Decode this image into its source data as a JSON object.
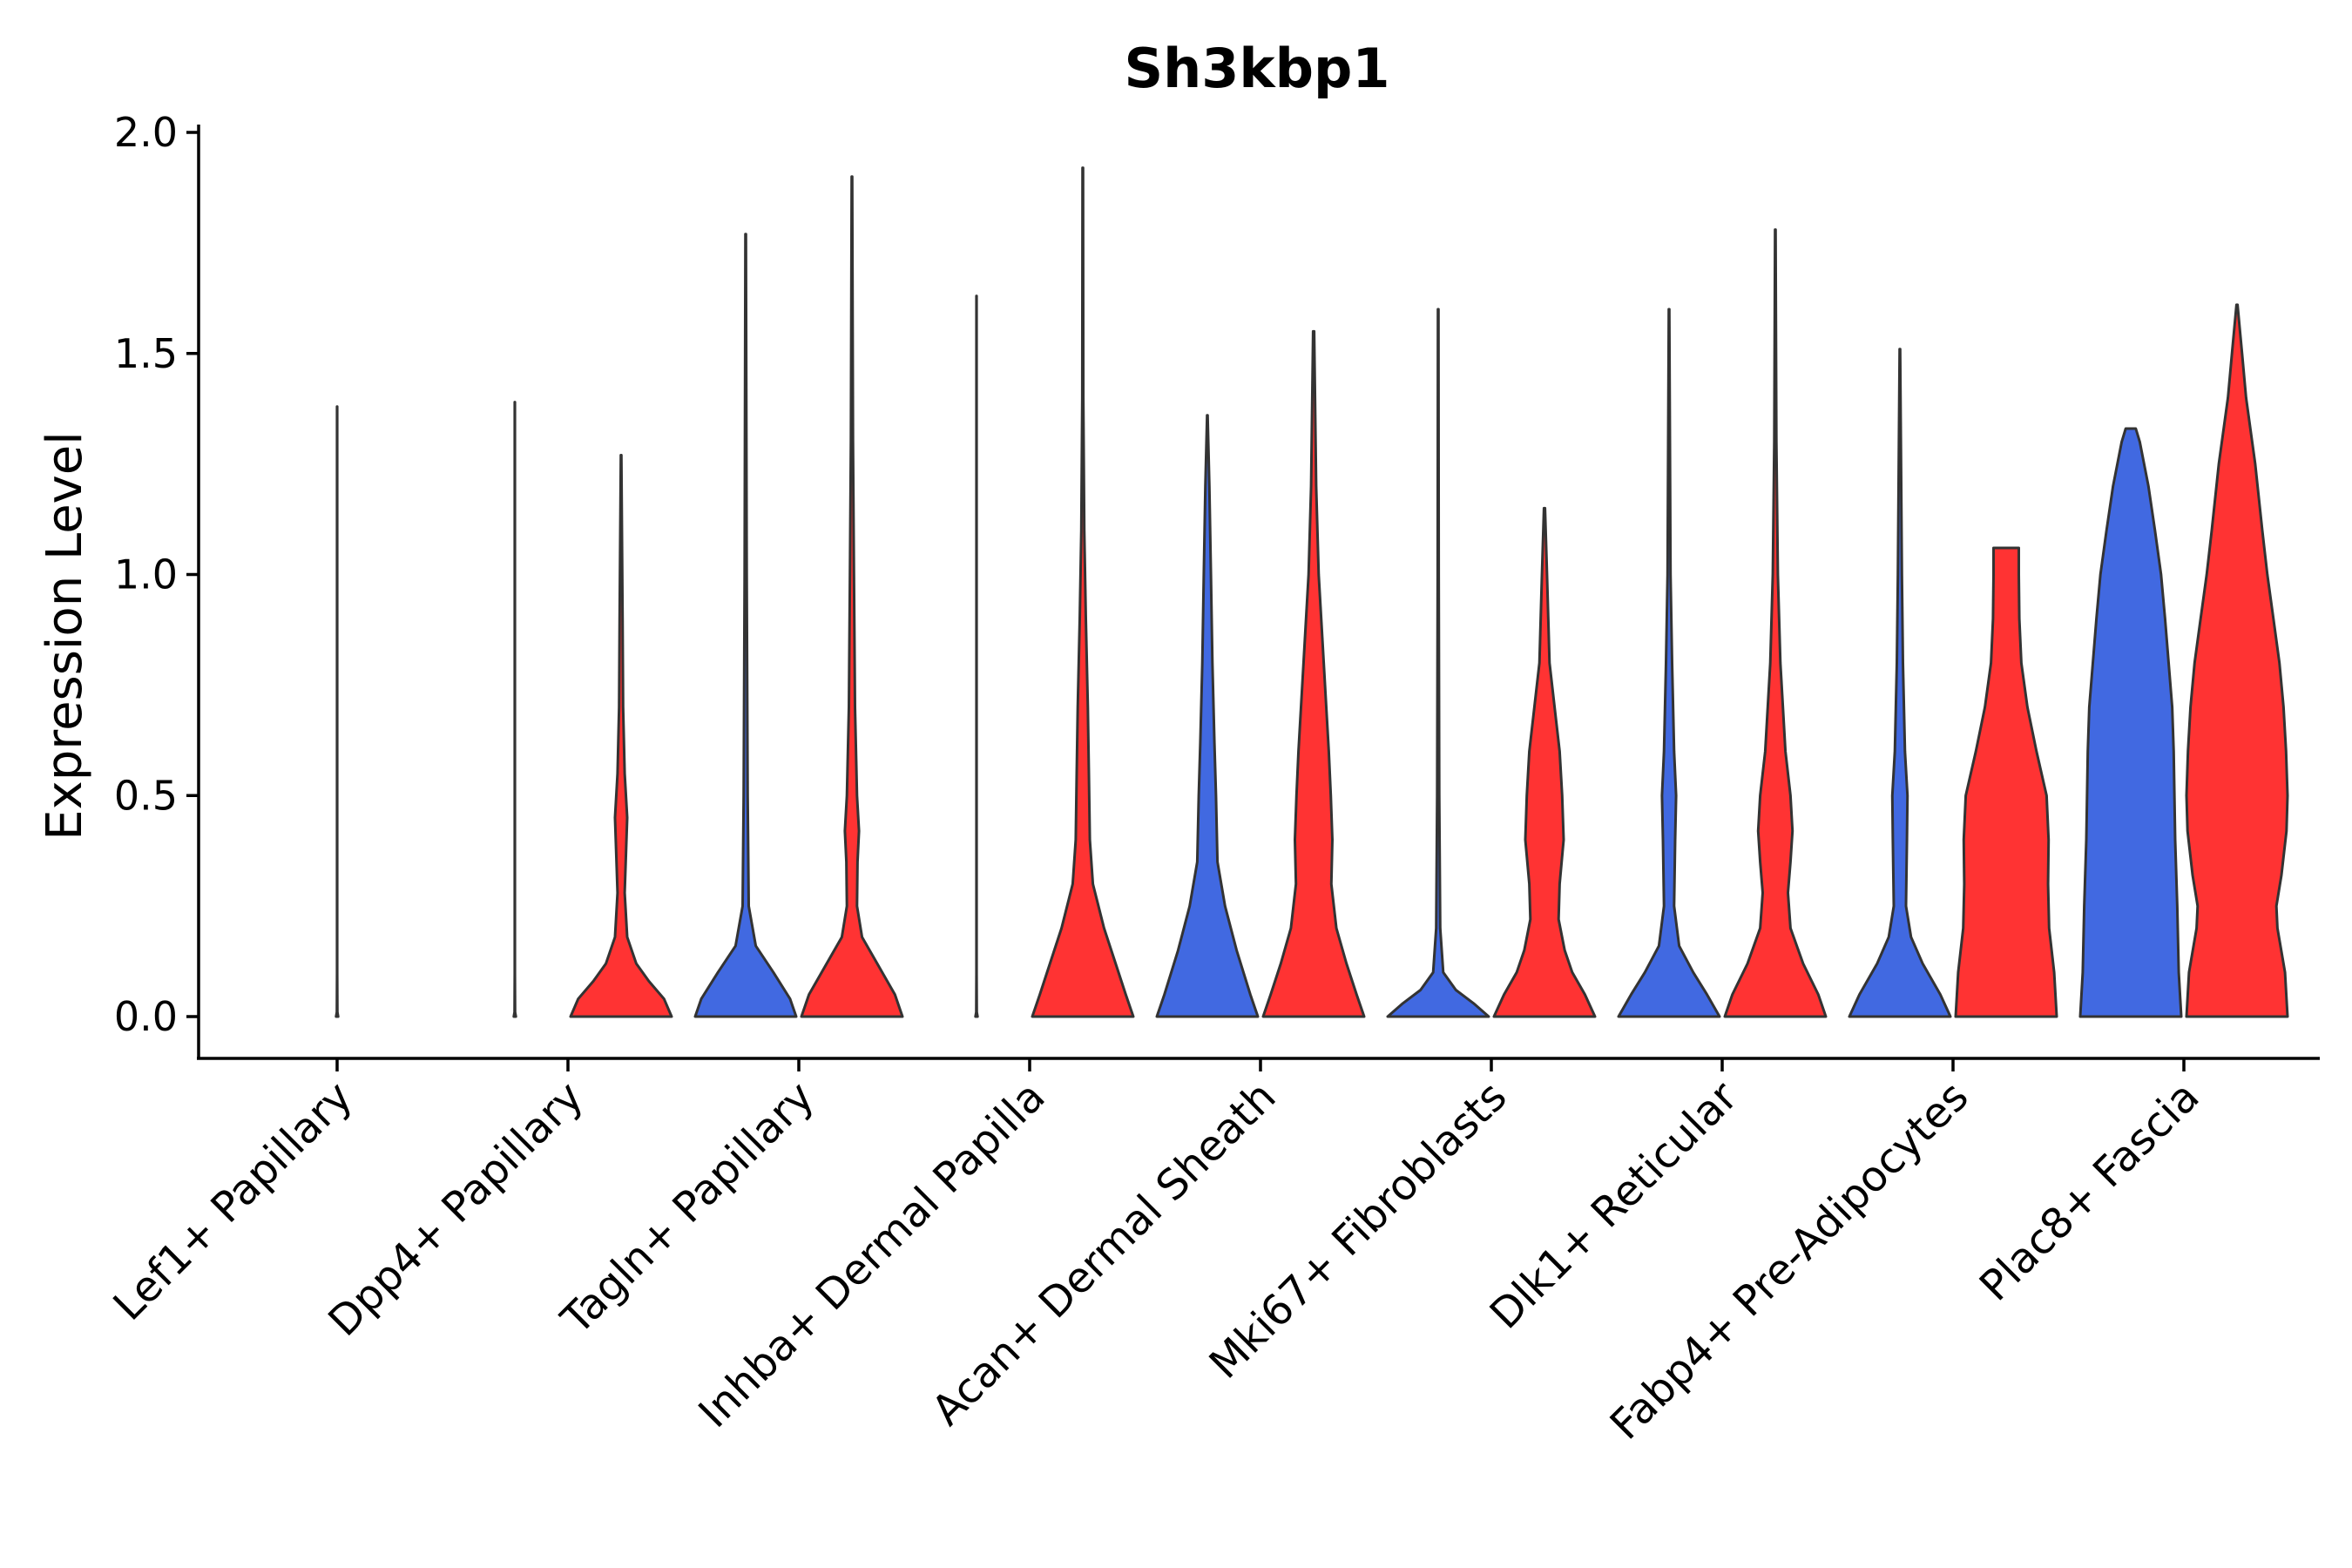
{
  "chart_data": {
    "type": "violin",
    "title": "Sh3kbp1",
    "xlabel": "",
    "ylabel": "Expression Level",
    "ylim": [
      -0.1,
      2.0
    ],
    "yticks": [
      0.0,
      0.5,
      1.0,
      1.5,
      2.0
    ],
    "ytick_labels": [
      "0.0",
      "0.5",
      "1.0",
      "1.5",
      "2.0"
    ],
    "grid": false,
    "legend": "none",
    "colors": {
      "group_a": "#4169E1",
      "group_b": "#FF3333",
      "outline": "#333333"
    },
    "categories": [
      "Lef1+ Papillary",
      "Dpp4+ Papillary",
      "Tagln+ Papillary",
      "Inhba+ Dermal Papilla",
      "Acan+ Dermal Sheath",
      "Mki67+ Fibroblasts",
      "Dlk1+ Reticular",
      "Fabp4+ Pre-Adipocytes",
      "Plac8+ Fascia"
    ],
    "series": [
      {
        "name": "group_a",
        "color": "#4169E1",
        "violins": [
          {
            "max": 1.38,
            "profile": [
              [
                0,
                0.02
              ],
              [
                0.01,
                0.005
              ],
              [
                0.1,
                0.002
              ],
              [
                1.38,
                0.002
              ]
            ]
          },
          {
            "max": 1.39,
            "profile": [
              [
                0,
                0.02
              ],
              [
                0.01,
                0.005
              ],
              [
                0.1,
                0.002
              ],
              [
                1.39,
                0.002
              ]
            ]
          },
          {
            "max": 1.77,
            "profile": [
              [
                0,
                1.0
              ],
              [
                0.04,
                0.88
              ],
              [
                0.1,
                0.55
              ],
              [
                0.16,
                0.2
              ],
              [
                0.25,
                0.06
              ],
              [
                0.5,
                0.04
              ],
              [
                1.0,
                0.02
              ],
              [
                1.77,
                0.005
              ]
            ]
          },
          {
            "max": 1.63,
            "profile": [
              [
                0,
                0.02
              ],
              [
                0.01,
                0.005
              ],
              [
                0.1,
                0.002
              ],
              [
                1.63,
                0.002
              ]
            ]
          },
          {
            "max": 1.36,
            "profile": [
              [
                0,
                1.0
              ],
              [
                0.05,
                0.85
              ],
              [
                0.15,
                0.58
              ],
              [
                0.25,
                0.35
              ],
              [
                0.35,
                0.2
              ],
              [
                0.5,
                0.17
              ],
              [
                0.62,
                0.14
              ],
              [
                0.8,
                0.1
              ],
              [
                1.0,
                0.07
              ],
              [
                1.2,
                0.04
              ],
              [
                1.36,
                0.005
              ]
            ]
          },
          {
            "max": 1.6,
            "profile": [
              [
                0,
                1.0
              ],
              [
                0.03,
                0.7
              ],
              [
                0.06,
                0.35
              ],
              [
                0.1,
                0.1
              ],
              [
                0.2,
                0.04
              ],
              [
                0.5,
                0.02
              ],
              [
                1.0,
                0.01
              ],
              [
                1.6,
                0.005
              ]
            ]
          },
          {
            "max": 1.6,
            "profile": [
              [
                0,
                1.0
              ],
              [
                0.05,
                0.75
              ],
              [
                0.1,
                0.48
              ],
              [
                0.16,
                0.2
              ],
              [
                0.25,
                0.1
              ],
              [
                0.4,
                0.12
              ],
              [
                0.5,
                0.14
              ],
              [
                0.6,
                0.1
              ],
              [
                0.8,
                0.06
              ],
              [
                1.0,
                0.03
              ],
              [
                1.6,
                0.005
              ]
            ]
          },
          {
            "max": 1.51,
            "profile": [
              [
                0,
                1.0
              ],
              [
                0.05,
                0.8
              ],
              [
                0.12,
                0.45
              ],
              [
                0.18,
                0.22
              ],
              [
                0.25,
                0.12
              ],
              [
                0.4,
                0.14
              ],
              [
                0.5,
                0.15
              ],
              [
                0.6,
                0.1
              ],
              [
                0.8,
                0.06
              ],
              [
                1.0,
                0.04
              ],
              [
                1.51,
                0.005
              ]
            ]
          },
          {
            "max": 1.33,
            "profile": [
              [
                0,
                1.0
              ],
              [
                0.1,
                0.95
              ],
              [
                0.25,
                0.92
              ],
              [
                0.4,
                0.88
              ],
              [
                0.6,
                0.85
              ],
              [
                0.7,
                0.82
              ],
              [
                0.8,
                0.75
              ],
              [
                0.9,
                0.68
              ],
              [
                1.0,
                0.6
              ],
              [
                1.1,
                0.48
              ],
              [
                1.2,
                0.35
              ],
              [
                1.3,
                0.18
              ],
              [
                1.33,
                0.1
              ]
            ]
          }
        ]
      },
      {
        "name": "group_b",
        "color": "#FF3333",
        "violins": [
          null,
          {
            "max": 1.27,
            "profile": [
              [
                0,
                1.0
              ],
              [
                0.04,
                0.85
              ],
              [
                0.08,
                0.55
              ],
              [
                0.12,
                0.3
              ],
              [
                0.18,
                0.12
              ],
              [
                0.28,
                0.07
              ],
              [
                0.38,
                0.1
              ],
              [
                0.45,
                0.12
              ],
              [
                0.55,
                0.07
              ],
              [
                0.7,
                0.04
              ],
              [
                0.9,
                0.03
              ],
              [
                1.27,
                0.005
              ]
            ]
          },
          {
            "max": 1.9,
            "profile": [
              [
                0,
                1.0
              ],
              [
                0.05,
                0.85
              ],
              [
                0.12,
                0.5
              ],
              [
                0.18,
                0.2
              ],
              [
                0.25,
                0.1
              ],
              [
                0.35,
                0.11
              ],
              [
                0.42,
                0.14
              ],
              [
                0.5,
                0.1
              ],
              [
                0.7,
                0.06
              ],
              [
                1.0,
                0.04
              ],
              [
                1.3,
                0.02
              ],
              [
                1.9,
                0.005
              ]
            ]
          },
          {
            "max": 1.92,
            "profile": [
              [
                0,
                1.0
              ],
              [
                0.05,
                0.85
              ],
              [
                0.12,
                0.65
              ],
              [
                0.2,
                0.42
              ],
              [
                0.3,
                0.2
              ],
              [
                0.4,
                0.14
              ],
              [
                0.55,
                0.12
              ],
              [
                0.7,
                0.1
              ],
              [
                0.9,
                0.06
              ],
              [
                1.1,
                0.03
              ],
              [
                1.4,
                0.01
              ],
              [
                1.92,
                0.005
              ]
            ]
          },
          {
            "max": 1.55,
            "profile": [
              [
                0,
                1.0
              ],
              [
                0.05,
                0.85
              ],
              [
                0.12,
                0.65
              ],
              [
                0.2,
                0.45
              ],
              [
                0.3,
                0.35
              ],
              [
                0.4,
                0.37
              ],
              [
                0.5,
                0.34
              ],
              [
                0.6,
                0.3
              ],
              [
                0.8,
                0.2
              ],
              [
                1.0,
                0.1
              ],
              [
                1.2,
                0.05
              ],
              [
                1.55,
                0.01
              ]
            ]
          },
          {
            "max": 1.15,
            "profile": [
              [
                0,
                1.0
              ],
              [
                0.05,
                0.8
              ],
              [
                0.1,
                0.55
              ],
              [
                0.15,
                0.4
              ],
              [
                0.22,
                0.28
              ],
              [
                0.3,
                0.3
              ],
              [
                0.4,
                0.38
              ],
              [
                0.5,
                0.35
              ],
              [
                0.6,
                0.3
              ],
              [
                0.7,
                0.2
              ],
              [
                0.8,
                0.1
              ],
              [
                1.0,
                0.05
              ],
              [
                1.15,
                0.01
              ]
            ]
          },
          {
            "max": 1.78,
            "profile": [
              [
                0,
                1.0
              ],
              [
                0.05,
                0.85
              ],
              [
                0.12,
                0.55
              ],
              [
                0.2,
                0.3
              ],
              [
                0.28,
                0.25
              ],
              [
                0.35,
                0.3
              ],
              [
                0.42,
                0.34
              ],
              [
                0.5,
                0.3
              ],
              [
                0.6,
                0.2
              ],
              [
                0.8,
                0.1
              ],
              [
                1.0,
                0.05
              ],
              [
                1.3,
                0.02
              ],
              [
                1.78,
                0.005
              ]
            ]
          },
          {
            "max": 1.06,
            "profile": [
              [
                0,
                1.0
              ],
              [
                0.1,
                0.95
              ],
              [
                0.2,
                0.85
              ],
              [
                0.3,
                0.83
              ],
              [
                0.4,
                0.84
              ],
              [
                0.5,
                0.8
              ],
              [
                0.6,
                0.6
              ],
              [
                0.7,
                0.42
              ],
              [
                0.8,
                0.3
              ],
              [
                0.9,
                0.26
              ],
              [
                1.0,
                0.25
              ],
              [
                1.06,
                0.25
              ]
            ]
          },
          {
            "max": 1.61,
            "profile": [
              [
                0,
                1.0
              ],
              [
                0.1,
                0.95
              ],
              [
                0.2,
                0.8
              ],
              [
                0.25,
                0.78
              ],
              [
                0.32,
                0.88
              ],
              [
                0.42,
                0.98
              ],
              [
                0.5,
                1.0
              ],
              [
                0.6,
                0.97
              ],
              [
                0.7,
                0.92
              ],
              [
                0.8,
                0.84
              ],
              [
                0.9,
                0.72
              ],
              [
                1.0,
                0.6
              ],
              [
                1.1,
                0.5
              ],
              [
                1.25,
                0.36
              ],
              [
                1.4,
                0.18
              ],
              [
                1.5,
                0.1
              ],
              [
                1.61,
                0.01
              ]
            ]
          }
        ]
      }
    ]
  }
}
